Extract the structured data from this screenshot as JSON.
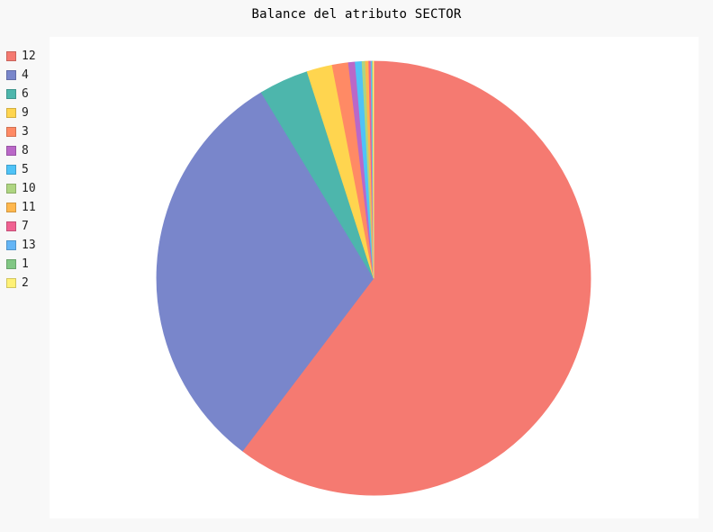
{
  "chart_data": {
    "type": "pie",
    "title": "Balance del atributo SECTOR",
    "legend_placement": "left",
    "slices": [
      {
        "label": "12",
        "value": 60.3,
        "color": "#F57A71"
      },
      {
        "label": "4",
        "value": 31.0,
        "color": "#7986CB"
      },
      {
        "label": "6",
        "value": 3.7,
        "color": "#4DB6AC"
      },
      {
        "label": "9",
        "value": 1.9,
        "color": "#FFD54F"
      },
      {
        "label": "3",
        "value": 1.2,
        "color": "#FF8A65"
      },
      {
        "label": "8",
        "value": 0.5,
        "color": "#BA68C8"
      },
      {
        "label": "5",
        "value": 0.5,
        "color": "#4FC3F7"
      },
      {
        "label": "10",
        "value": 0.25,
        "color": "#AED581"
      },
      {
        "label": "11",
        "value": 0.25,
        "color": "#FFB74D"
      },
      {
        "label": "7",
        "value": 0.15,
        "color": "#F06292"
      },
      {
        "label": "13",
        "value": 0.1,
        "color": "#64B5F6"
      },
      {
        "label": "1",
        "value": 0.05,
        "color": "#81C784"
      },
      {
        "label": "2",
        "value": 0.05,
        "color": "#FFF176"
      }
    ]
  }
}
